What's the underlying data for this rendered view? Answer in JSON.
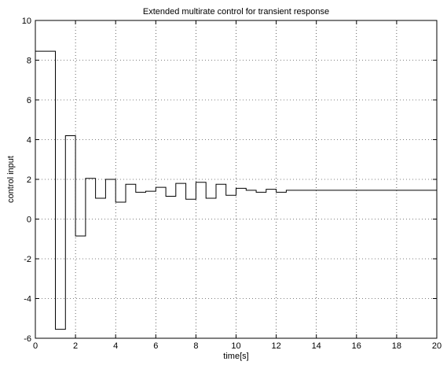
{
  "chart_data": {
    "type": "line",
    "title": "Extended multirate control for transient response",
    "xlabel": "time[s]",
    "ylabel": "control input",
    "xlim": [
      0,
      20
    ],
    "ylim": [
      -6,
      10
    ],
    "xticks": [
      0,
      2,
      4,
      6,
      8,
      10,
      12,
      14,
      16,
      18,
      20
    ],
    "yticks": [
      -6,
      -4,
      -2,
      0,
      2,
      4,
      6,
      8,
      10
    ],
    "grid": true,
    "legend": "none",
    "line_color": "#000000",
    "series": [
      {
        "step": "post",
        "x": [
          0,
          1,
          1.5,
          2,
          2.5,
          3,
          3.5,
          4,
          4.5,
          5,
          5.5,
          6,
          6.5,
          7,
          7.5,
          8,
          8.5,
          9,
          9.5,
          10,
          10.5,
          11,
          11.5,
          12,
          12.5,
          13,
          20
        ],
        "y": [
          8.45,
          -5.55,
          4.2,
          -0.85,
          2.05,
          1.05,
          2.0,
          0.85,
          1.75,
          1.35,
          1.4,
          1.6,
          1.15,
          1.8,
          1.0,
          1.85,
          1.05,
          1.75,
          1.2,
          1.55,
          1.45,
          1.35,
          1.5,
          1.35,
          1.45,
          1.45,
          1.45
        ]
      }
    ]
  }
}
